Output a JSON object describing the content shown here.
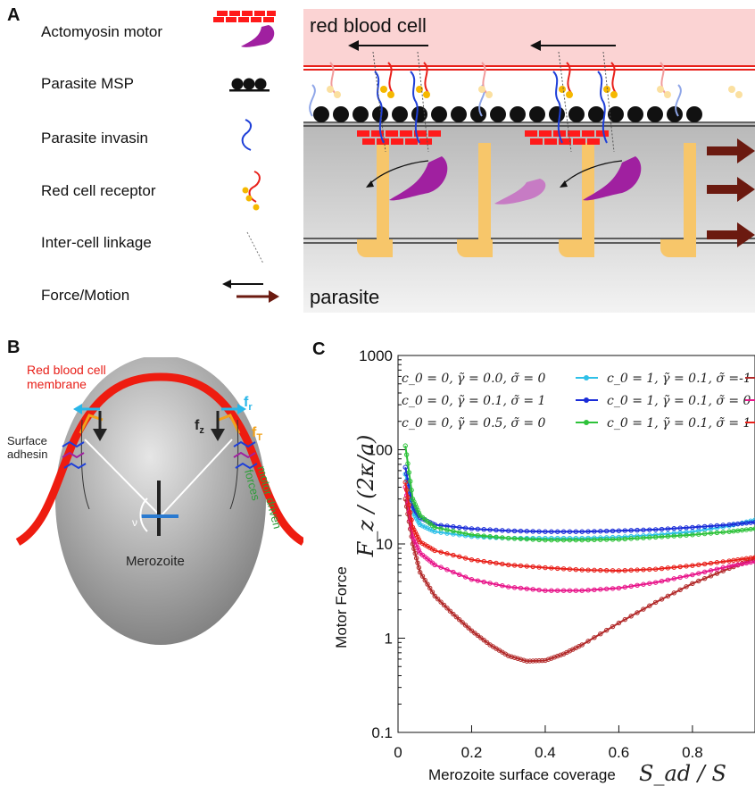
{
  "panelA": {
    "letter": "A",
    "legend": [
      {
        "label": "Actomyosin motor",
        "icon": "actomyosin-motor-icon"
      },
      {
        "label": "Parasite MSP",
        "icon": "msp-icon"
      },
      {
        "label": "Parasite invasin",
        "icon": "invasin-icon"
      },
      {
        "label": "Red cell receptor",
        "icon": "receptor-icon"
      },
      {
        "label": "Inter-cell linkage",
        "icon": "linkage-icon"
      },
      {
        "label": "Force/Motion",
        "icon": "force-arrows-icon"
      }
    ],
    "rbc_label": "red blood cell",
    "parasite_label": "parasite",
    "colors": {
      "rbc": "#fbd3d3",
      "actomyosin": "#ff1a1a",
      "myosin": "#a020a0",
      "invasin": "#1e3fd8",
      "receptor": "#e8201a",
      "receptor_dot": "#f5b800",
      "actin_support": "#f7c66a",
      "force_arrow": "#6b1a10"
    }
  },
  "panelB": {
    "letter": "B",
    "rbc_membrane_label": "Red blood cell\nmembrane",
    "surface_adhesin_label": "Surface\nadhesin",
    "merozoite_label": "Merozoite",
    "fz_label": "f",
    "fz_sub": "z",
    "fr_label": "f",
    "fr_sub": "r",
    "ft_label": "f",
    "ft_sub": "T",
    "motor_label": "motor driven\nforces",
    "angle_label": "ν"
  },
  "panelC": {
    "letter": "C",
    "chart_data": {
      "type": "line",
      "xlabel": "Merozoite surface coverage",
      "xlabel_math": "S_ad / S",
      "ylabel": "Motor Force",
      "ylabel_math": "F_z / (2κ/a)",
      "yscale": "log",
      "xlim": [
        0,
        0.97
      ],
      "ylim": [
        0.1,
        1000
      ],
      "xticks": [
        "0",
        "0.2",
        "0.4",
        "0.6",
        "0.8"
      ],
      "yticks": [
        "0.1",
        "1",
        "10",
        "100",
        "1000"
      ],
      "series": [
        {
          "name": "c0 = 0, γ̃ = 0.0, σ̃ = 0",
          "color": "#2fc0e8",
          "x": [
            0.02,
            0.04,
            0.06,
            0.1,
            0.2,
            0.3,
            0.4,
            0.5,
            0.6,
            0.7,
            0.8,
            0.9,
            0.97
          ],
          "y": [
            55,
            22,
            16,
            13.5,
            12,
            11.5,
            11.5,
            11.5,
            11.8,
            12.5,
            13.5,
            15.5,
            18
          ]
        },
        {
          "name": "c0 = 0, γ̃ = 0.1, σ̃ = 1",
          "color": "#1a2cd8",
          "x": [
            0.02,
            0.04,
            0.06,
            0.1,
            0.2,
            0.3,
            0.4,
            0.5,
            0.6,
            0.7,
            0.8,
            0.9,
            0.97
          ],
          "y": [
            65,
            25,
            19,
            16,
            14.5,
            13.8,
            13.5,
            13.5,
            13.8,
            14.2,
            15,
            16,
            17
          ]
        },
        {
          "name": "c0 = 0, γ̃ = 0.5, σ̃ = 0",
          "color": "#2ec23a",
          "x": [
            0.02,
            0.04,
            0.06,
            0.1,
            0.2,
            0.3,
            0.4,
            0.5,
            0.6,
            0.7,
            0.8,
            0.9,
            0.97
          ],
          "y": [
            110,
            30,
            20,
            15,
            12.5,
            11.5,
            11,
            11,
            11.2,
            11.8,
            12.5,
            13.5,
            14.5
          ]
        },
        {
          "name": "c0 = 1, γ̃ = 0.1, σ̃ = -1",
          "color": "#b22a2a",
          "x": [
            0.02,
            0.04,
            0.06,
            0.1,
            0.15,
            0.2,
            0.25,
            0.3,
            0.35,
            0.4,
            0.45,
            0.5,
            0.6,
            0.7,
            0.8,
            0.9,
            0.97
          ],
          "y": [
            30,
            10,
            5,
            2.8,
            1.8,
            1.2,
            0.85,
            0.65,
            0.57,
            0.58,
            0.68,
            0.85,
            1.45,
            2.4,
            3.8,
            5.5,
            7
          ]
        },
        {
          "name": "c0 = 1, γ̃ = 0.1, σ̃ = 0",
          "color": "#e8158a",
          "x": [
            0.02,
            0.04,
            0.06,
            0.1,
            0.2,
            0.3,
            0.4,
            0.5,
            0.6,
            0.7,
            0.8,
            0.9,
            0.97
          ],
          "y": [
            40,
            12,
            8,
            6,
            4.2,
            3.5,
            3.2,
            3.2,
            3.4,
            3.9,
            4.7,
            5.8,
            6.5
          ]
        },
        {
          "name": "c0 = 1, γ̃ = 0.1, σ̃ = 1",
          "color": "#e8201a",
          "x": [
            0.02,
            0.04,
            0.06,
            0.1,
            0.2,
            0.3,
            0.4,
            0.5,
            0.6,
            0.7,
            0.8,
            0.9,
            0.97
          ],
          "y": [
            45,
            15,
            10.5,
            8.5,
            6.8,
            6,
            5.6,
            5.3,
            5.2,
            5.4,
            5.9,
            6.6,
            7.2
          ]
        }
      ],
      "legend_col1": [
        "c_0 = 0, γ̃ = 0.0, σ̃ = 0",
        "c_0 = 0, γ̃ = 0.1, σ̃ = 1",
        "c_0 = 0, γ̃ = 0.5, σ̃ = 0"
      ],
      "legend_col2": [
        "c_0 = 1, γ̃ = 0.1, σ̃ =-1",
        "c_0 = 1, γ̃ = 0.1, σ̃ = 0",
        "c_0 = 1, γ̃ = 0.1, σ̃ = 1"
      ]
    }
  }
}
